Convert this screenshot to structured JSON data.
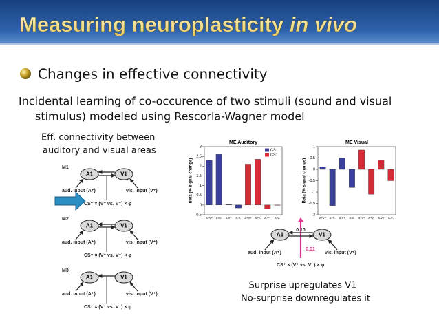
{
  "title": {
    "main": "Measuring neuroplasticity",
    "italic": "in vivo"
  },
  "bullet": "Changes in effective connectivity",
  "body": [
    "Incidental learning of co-occurence of two stimuli (sound and visual",
    "stimulus) modeled using Rescorla-Wagner model"
  ],
  "caption": [
    "Eff. connectivity between",
    "auditory and visual areas"
  ],
  "models": [
    {
      "label": "M1",
      "nodes": [
        "A1",
        "V1"
      ],
      "inputs": [
        "aud. input (A⁺)",
        "vis. input (V⁺)"
      ],
      "modulator": "CS⁺ × (V⁺ vs. V⁻) × φ"
    },
    {
      "label": "M2",
      "nodes": [
        "A1",
        "V1"
      ],
      "inputs": [
        "aud. input (A⁺)",
        "vis. input (V⁺)"
      ],
      "modulator": "CS⁺ × (V⁺ vs. V⁻) × φ"
    },
    {
      "label": "M3",
      "nodes": [
        "A1",
        "V1"
      ],
      "inputs": [
        "aud. input (A⁺)",
        "vis. input (V⁺)"
      ],
      "modulator": "CS⁺ × (V⁺ vs. V⁻) × φ"
    }
  ],
  "charts": [
    {
      "type": "bar",
      "title": "ME Auditory",
      "ylabel": "Beta (% signal change)",
      "categories": [
        "A+V+",
        "A+V-",
        "A-V+",
        "A-V-",
        "A+V+",
        "A+V-",
        "A-V+",
        "A-V-"
      ],
      "series": [
        {
          "name": "CS⁺",
          "color": "#3a3f9c",
          "values": [
            2.3,
            2.6,
            0.02,
            -0.15,
            null,
            null,
            null,
            null
          ]
        },
        {
          "name": "CS⁻",
          "color": "#d42c37",
          "values": [
            null,
            null,
            null,
            null,
            2.1,
            2.35,
            -0.2,
            0
          ]
        }
      ],
      "ylim": [
        -0.5,
        3
      ],
      "yticks": [
        -0.5,
        0,
        0.5,
        1,
        1.5,
        2,
        2.5,
        3
      ],
      "legend": true
    },
    {
      "type": "bar",
      "title": "ME Visual",
      "ylabel": "Beta (% signal change)",
      "categories": [
        "A+V+",
        "A+V-",
        "A-V+",
        "A-V-",
        "A+V+",
        "A+V-",
        "A-V+",
        "A-V-"
      ],
      "series": [
        {
          "name": "CS⁺",
          "color": "#3a3f9c",
          "values": [
            0.1,
            -1.6,
            0.5,
            -0.8,
            null,
            null,
            null,
            null
          ]
        },
        {
          "name": "CS⁻",
          "color": "#d42c37",
          "values": [
            null,
            null,
            null,
            null,
            0.85,
            -1.1,
            0.4,
            -0.5
          ]
        }
      ],
      "ylim": [
        -2,
        1
      ],
      "yticks": [
        -2,
        -1.5,
        -1,
        -0.5,
        0,
        0.5,
        1
      ],
      "legend": false
    }
  ],
  "result": {
    "nodes": [
      "A1",
      "V1"
    ],
    "weights": [
      {
        "value": 0.1,
        "label": "0.10"
      },
      {
        "value": 0.01,
        "label": "0.01"
      }
    ],
    "inputs": [
      "aud. input (A⁺)",
      "vis. input (V⁺)"
    ],
    "modulator": "CS⁺ × (V⁺ vs. V⁻) × φ"
  },
  "conclusion": [
    "Surprise upregulates V1",
    "No-surprise downregulates it"
  ]
}
